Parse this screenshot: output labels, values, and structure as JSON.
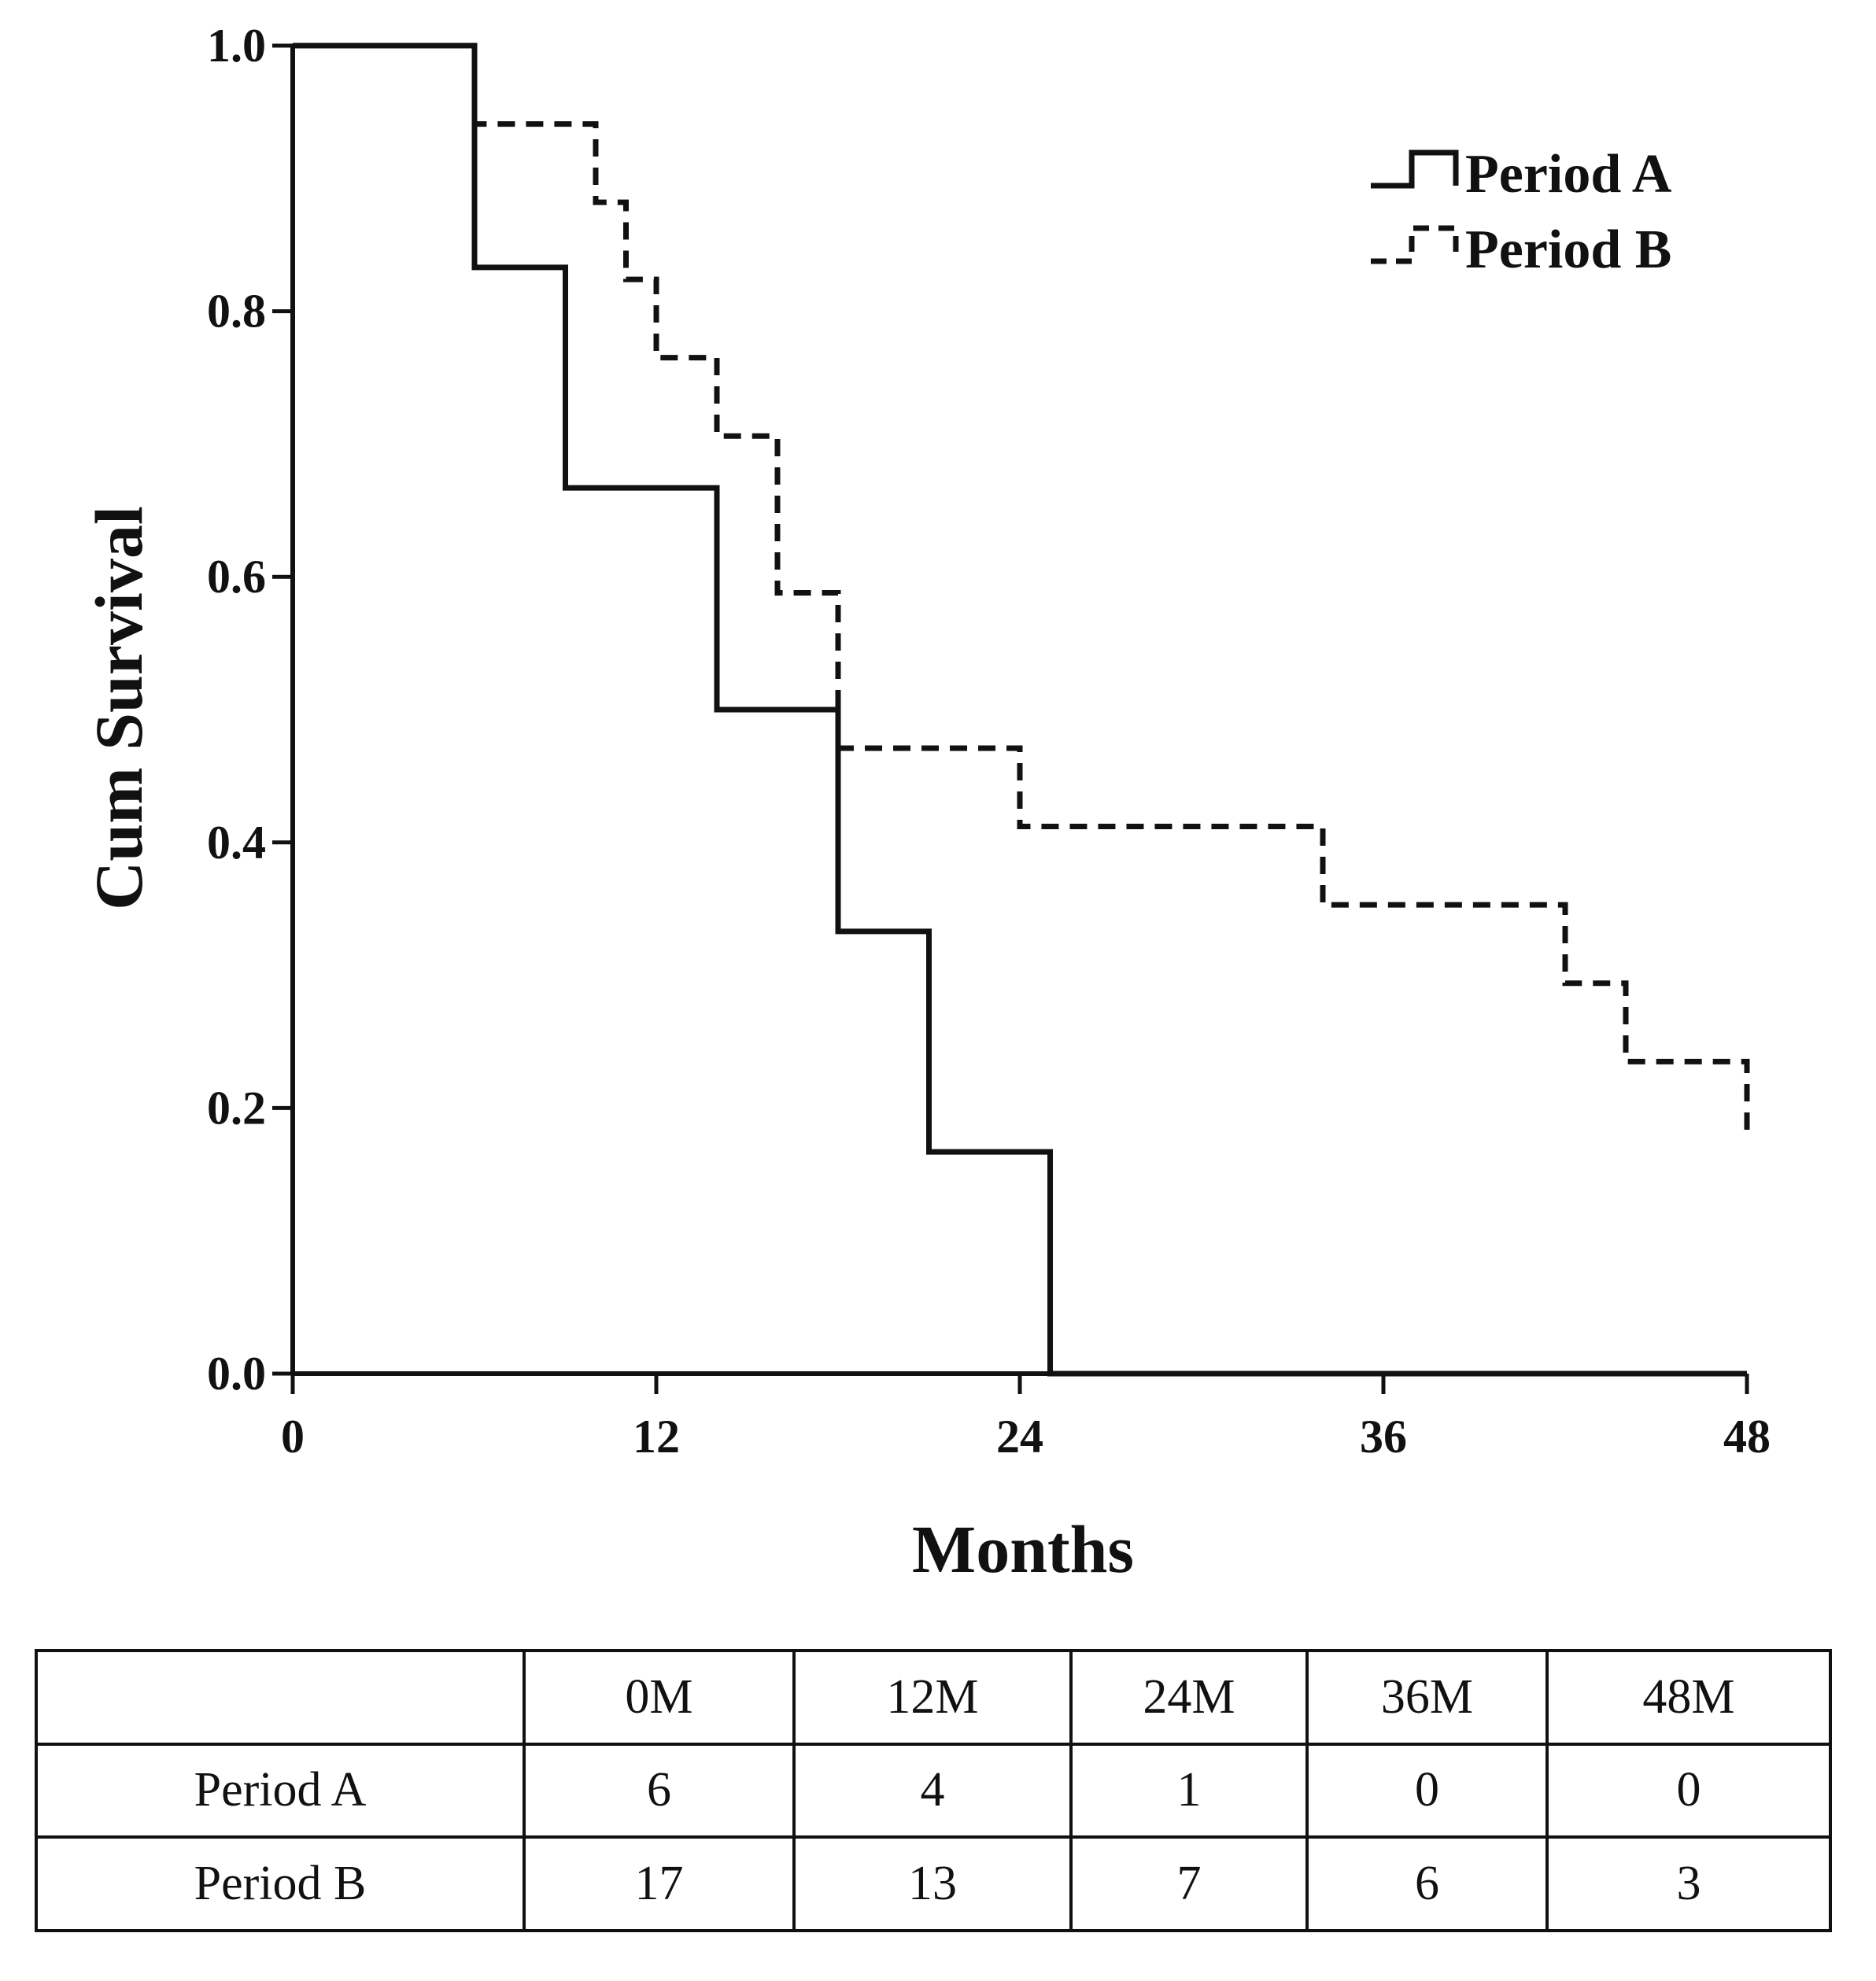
{
  "chart_data": {
    "type": "line",
    "title": "",
    "xlabel": "Months",
    "ylabel": "Cum Survival",
    "xlim": [
      0,
      48
    ],
    "ylim": [
      0,
      1.0
    ],
    "x_ticks": [
      "0",
      "12",
      "24",
      "36",
      "48"
    ],
    "y_ticks": [
      "0.0",
      "0.2",
      "0.4",
      "0.6",
      "0.8",
      "1.0"
    ],
    "legend_position": "top-right",
    "grid": false,
    "series": [
      {
        "name": "Period A",
        "style": "solid",
        "color": "#111111",
        "steps": [
          [
            0,
            1.0
          ],
          [
            6,
            0.833
          ],
          [
            9,
            0.667
          ],
          [
            14,
            0.5
          ],
          [
            18,
            0.333
          ],
          [
            21,
            0.167
          ],
          [
            25,
            0.0
          ],
          [
            48,
            0.0
          ]
        ]
      },
      {
        "name": "Period B",
        "style": "dashed",
        "color": "#111111",
        "steps": [
          [
            0,
            1.0
          ],
          [
            6,
            0.941
          ],
          [
            10,
            0.882
          ],
          [
            11,
            0.824
          ],
          [
            12,
            0.765
          ],
          [
            14,
            0.706
          ],
          [
            16,
            0.588
          ],
          [
            18,
            0.471
          ],
          [
            24,
            0.412
          ],
          [
            34,
            0.353
          ],
          [
            42,
            0.294
          ],
          [
            44,
            0.235
          ],
          [
            48,
            0.176
          ]
        ]
      }
    ]
  },
  "risk_table": {
    "headers": [
      "",
      "0M",
      "12M",
      "24M",
      "36M",
      "48M"
    ],
    "rows": [
      {
        "label": "Period A",
        "values": [
          "6",
          "4",
          "1",
          "0",
          "0"
        ]
      },
      {
        "label": "Period B",
        "values": [
          "17",
          "13",
          "7",
          "6",
          "3"
        ]
      }
    ]
  }
}
